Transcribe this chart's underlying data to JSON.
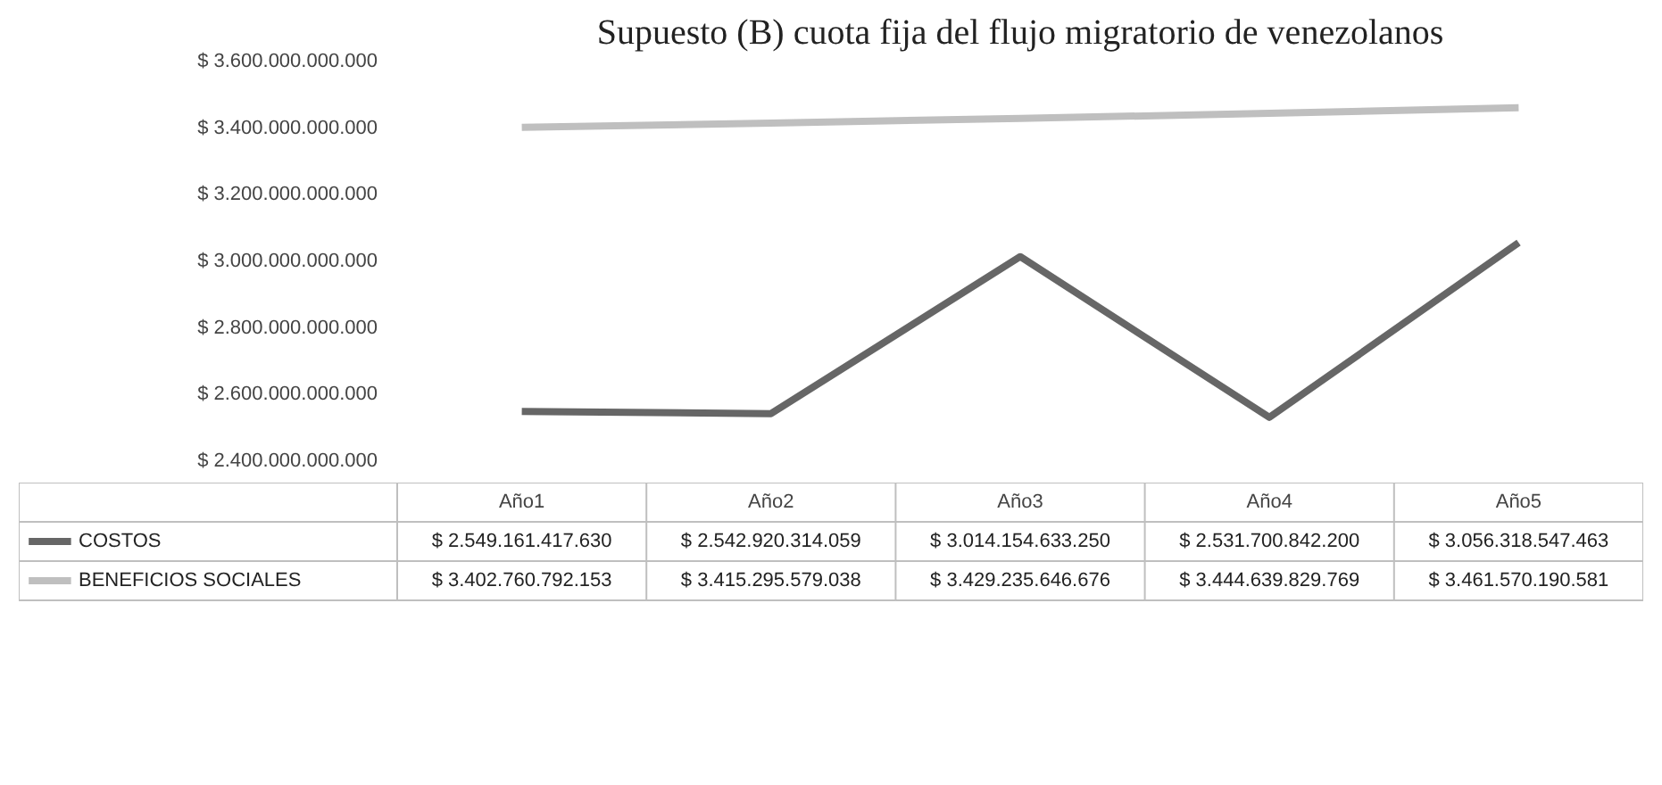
{
  "chart_data": {
    "type": "line",
    "title": "Supuesto (B) cuota fija del flujo migratorio de venezolanos",
    "categories": [
      "Año1",
      "Año2",
      "Año3",
      "Año4",
      "Año5"
    ],
    "ylim": [
      2400000000000,
      3600000000000
    ],
    "yticks": [
      {
        "value": 2400000000000,
        "label": "$ 2.400.000.000.000"
      },
      {
        "value": 2600000000000,
        "label": "$ 2.600.000.000.000"
      },
      {
        "value": 2800000000000,
        "label": "$ 2.800.000.000.000"
      },
      {
        "value": 3000000000000,
        "label": "$ 3.000.000.000.000"
      },
      {
        "value": 3200000000000,
        "label": "$ 3.200.000.000.000"
      },
      {
        "value": 3400000000000,
        "label": "$ 3.400.000.000.000"
      },
      {
        "value": 3600000000000,
        "label": "$ 3.600.000.000.000"
      }
    ],
    "grid": false,
    "legend": "bottom",
    "marker": "none",
    "line_style": "solid",
    "series": [
      {
        "name": "COSTOS",
        "color": "#666666",
        "values": [
          2549161417630,
          2542920314059,
          3014154633250,
          2531700842200,
          3056318547463
        ],
        "value_labels": [
          "$ 2.549.161.417.630",
          "$ 2.542.920.314.059",
          "$ 3.014.154.633.250",
          "$ 2.531.700.842.200",
          "$ 3.056.318.547.463"
        ]
      },
      {
        "name": "BENEFICIOS SOCIALES",
        "color": "#bfbfbf",
        "values": [
          3402760792153,
          3415295579038,
          3429235646676,
          3444639829769,
          3461570190581
        ],
        "value_labels": [
          "$ 3.402.760.792.153",
          "$ 3.415.295.579.038",
          "$ 3.429.235.646.676",
          "$ 3.444.639.829.769",
          "$ 3.461.570.190.581"
        ]
      }
    ]
  }
}
